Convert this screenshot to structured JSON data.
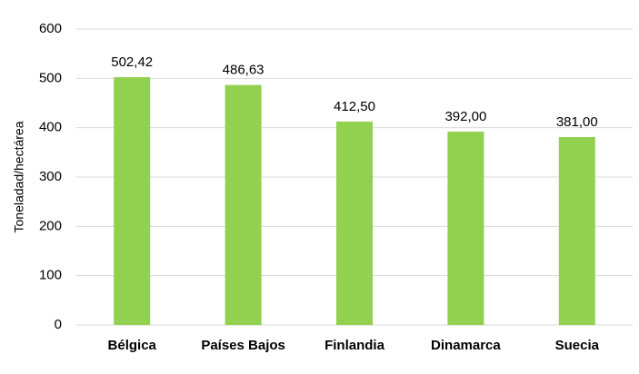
{
  "chart_data": {
    "type": "bar",
    "y_label": "Toneladad/hectárea",
    "categories": [
      "Bélgica",
      "Países Bajos",
      "Finlandia",
      "Dinamarca",
      "Suecia"
    ],
    "values": [
      502.42,
      486.63,
      412.5,
      392,
      381
    ],
    "value_labels": [
      "502,42",
      "486,63",
      "412,50",
      "392,00",
      "381,00"
    ],
    "color": "#92d050",
    "ylim": [
      0,
      600
    ],
    "yticks": [
      0,
      100,
      200,
      300,
      400,
      500,
      600
    ],
    "grid": true
  }
}
